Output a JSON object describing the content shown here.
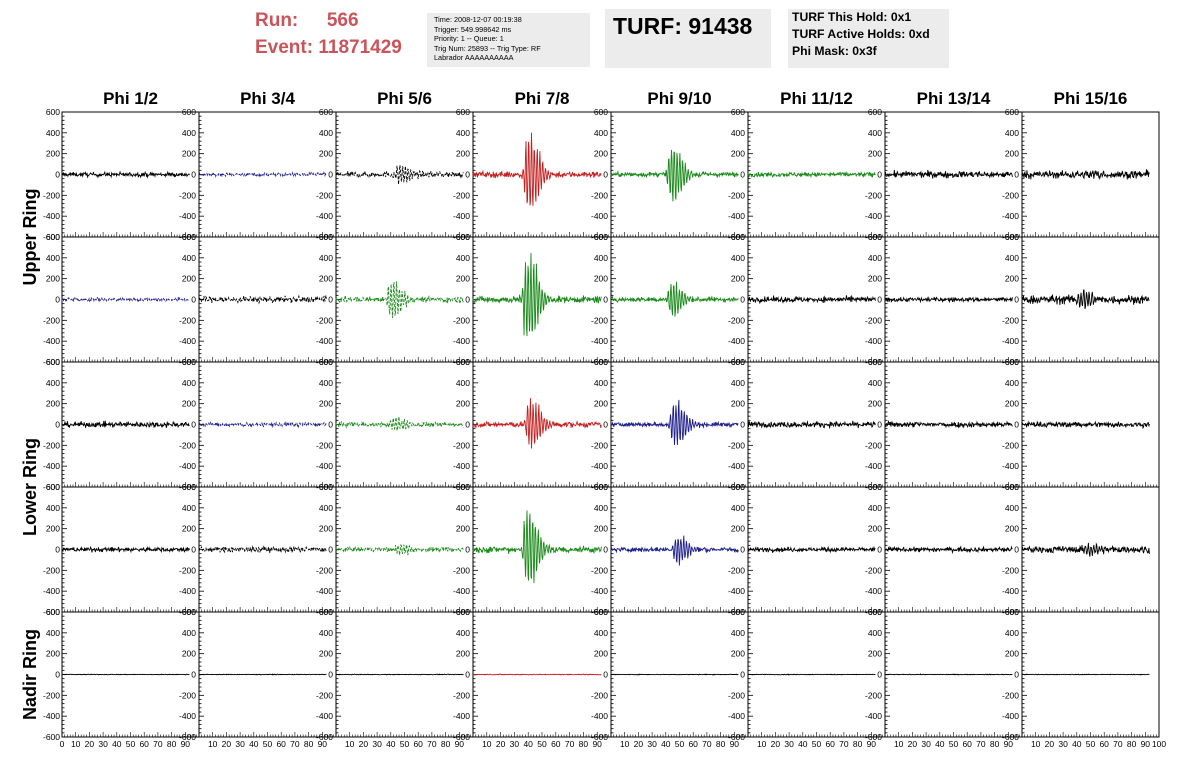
{
  "header": {
    "run_label": "Run:",
    "run_value": "566",
    "event_label": "Event:",
    "event_value": "11871429",
    "info_lines": [
      "Time: 2008-12-07 00:19:38",
      "Trigger: 549.998642 ms",
      "Priority: 1 -- Queue: 1",
      "Trig Num: 25893 -- Trig Type: RF",
      "Labrador AAAAAAAAAA"
    ],
    "turf_label": "TURF: 91438",
    "turf_lines": [
      "TURF This Hold: 0x1",
      "TURF Active Holds: 0xd",
      "Phi Mask: 0x3f"
    ]
  },
  "colors": {
    "black": "#000000",
    "blue": "#1d1d8c",
    "green": "#1a8a1a",
    "red": "#c42020",
    "header_red": "#c9545a",
    "box_gray": "#ececec"
  },
  "chart_data": {
    "type": "line",
    "column_titles": [
      "Phi 1/2",
      "Phi 3/4",
      "Phi 5/6",
      "Phi 7/8",
      "Phi 9/10",
      "Phi 11/12",
      "Phi 13/14",
      "Phi 15/16"
    ],
    "ring_labels": [
      "Upper Ring",
      "Lower Ring",
      "Nadir Ring"
    ],
    "xlim": [
      0,
      100
    ],
    "ylim": [
      -600,
      600
    ],
    "y_ticks": [
      600,
      400,
      200,
      0,
      -200,
      -400,
      -600
    ],
    "x_tick_labels": [
      "0",
      "10",
      "20",
      "30",
      "40",
      "50",
      "60",
      "70",
      "80",
      "90",
      "100"
    ],
    "rows": [
      {
        "ring": "Upper Ring",
        "channels": [
          {
            "color": "black",
            "baseline": 0,
            "noise": 20,
            "pulse_amp": 0,
            "pulse_center": 45,
            "style": "solid"
          },
          {
            "color": "blue",
            "baseline": 0,
            "noise": 15,
            "pulse_amp": 0,
            "pulse_center": 45,
            "style": "dashed"
          },
          {
            "color": "black",
            "baseline": 0,
            "noise": 25,
            "pulse_amp": 110,
            "pulse_center": 48,
            "style": "dashed"
          },
          {
            "color": "red",
            "baseline": 0,
            "noise": 28,
            "pulse_amp": 420,
            "pulse_center": 42,
            "style": "solid"
          },
          {
            "color": "green",
            "baseline": 0,
            "noise": 22,
            "pulse_amp": 300,
            "pulse_center": 46,
            "style": "solid"
          },
          {
            "color": "green",
            "baseline": 0,
            "noise": 20,
            "pulse_amp": 0,
            "pulse_center": 45,
            "style": "solid"
          },
          {
            "color": "black",
            "baseline": 0,
            "noise": 30,
            "pulse_amp": 0,
            "pulse_center": 45,
            "style": "solid"
          },
          {
            "color": "black",
            "baseline": 0,
            "noise": 35,
            "pulse_amp": 40,
            "pulse_center": 55,
            "style": "solid"
          }
        ]
      },
      {
        "ring": "Upper Ring",
        "channels": [
          {
            "color": "blue",
            "baseline": 0,
            "noise": 15,
            "pulse_amp": 0,
            "pulse_center": 45,
            "style": "dashed"
          },
          {
            "color": "black",
            "baseline": 0,
            "noise": 28,
            "pulse_amp": 0,
            "pulse_center": 45,
            "style": "dashed"
          },
          {
            "color": "green",
            "baseline": 0,
            "noise": 25,
            "pulse_amp": 190,
            "pulse_center": 42,
            "style": "dashed"
          },
          {
            "color": "green",
            "baseline": 0,
            "noise": 30,
            "pulse_amp": 500,
            "pulse_center": 41,
            "style": "solid"
          },
          {
            "color": "green",
            "baseline": 0,
            "noise": 22,
            "pulse_amp": 180,
            "pulse_center": 46,
            "style": "solid"
          },
          {
            "color": "black",
            "baseline": 0,
            "noise": 25,
            "pulse_amp": 0,
            "pulse_center": 45,
            "style": "solid"
          },
          {
            "color": "black",
            "baseline": 0,
            "noise": 20,
            "pulse_amp": 0,
            "pulse_center": 45,
            "style": "solid"
          },
          {
            "color": "black",
            "baseline": 0,
            "noise": 40,
            "pulse_amp": 100,
            "pulse_center": 45,
            "style": "solid"
          }
        ]
      },
      {
        "ring": "Lower Ring",
        "channels": [
          {
            "color": "black",
            "baseline": 0,
            "noise": 25,
            "pulse_amp": 0,
            "pulse_center": 45,
            "style": "solid"
          },
          {
            "color": "blue",
            "baseline": 0,
            "noise": 18,
            "pulse_amp": 0,
            "pulse_center": 45,
            "style": "dashed"
          },
          {
            "color": "green",
            "baseline": 0,
            "noise": 22,
            "pulse_amp": 80,
            "pulse_center": 45,
            "style": "dashed"
          },
          {
            "color": "red",
            "baseline": 0,
            "noise": 25,
            "pulse_amp": 280,
            "pulse_center": 43,
            "style": "solid"
          },
          {
            "color": "blue",
            "baseline": 0,
            "noise": 20,
            "pulse_amp": 250,
            "pulse_center": 48,
            "style": "solid"
          },
          {
            "color": "black",
            "baseline": 0,
            "noise": 25,
            "pulse_amp": 0,
            "pulse_center": 45,
            "style": "solid"
          },
          {
            "color": "black",
            "baseline": 0,
            "noise": 25,
            "pulse_amp": 0,
            "pulse_center": 45,
            "style": "solid"
          },
          {
            "color": "black",
            "baseline": 0,
            "noise": 25,
            "pulse_amp": 0,
            "pulse_center": 45,
            "style": "solid"
          }
        ]
      },
      {
        "ring": "Lower Ring",
        "channels": [
          {
            "color": "black",
            "baseline": 0,
            "noise": 20,
            "pulse_amp": 0,
            "pulse_center": 45,
            "style": "solid"
          },
          {
            "color": "black",
            "baseline": 0,
            "noise": 25,
            "pulse_amp": 0,
            "pulse_center": 45,
            "style": "dashed"
          },
          {
            "color": "green",
            "baseline": 0,
            "noise": 20,
            "pulse_amp": 60,
            "pulse_center": 48,
            "style": "dashed"
          },
          {
            "color": "green",
            "baseline": 0,
            "noise": 30,
            "pulse_amp": 430,
            "pulse_center": 41,
            "style": "solid"
          },
          {
            "color": "blue",
            "baseline": 0,
            "noise": 20,
            "pulse_amp": 160,
            "pulse_center": 50,
            "style": "solid"
          },
          {
            "color": "black",
            "baseline": 0,
            "noise": 20,
            "pulse_amp": 0,
            "pulse_center": 45,
            "style": "solid"
          },
          {
            "color": "black",
            "baseline": 0,
            "noise": 20,
            "pulse_amp": 0,
            "pulse_center": 45,
            "style": "solid"
          },
          {
            "color": "black",
            "baseline": 0,
            "noise": 30,
            "pulse_amp": 60,
            "pulse_center": 50,
            "style": "solid"
          }
        ]
      },
      {
        "ring": "Nadir Ring",
        "channels": [
          {
            "color": "black",
            "baseline": 0,
            "noise": 3,
            "pulse_amp": 0,
            "pulse_center": 45,
            "style": "solid"
          },
          {
            "color": "black",
            "baseline": 0,
            "noise": 3,
            "pulse_amp": 0,
            "pulse_center": 45,
            "style": "solid"
          },
          {
            "color": "black",
            "baseline": 0,
            "noise": 3,
            "pulse_amp": 0,
            "pulse_center": 45,
            "style": "solid"
          },
          {
            "color": "red",
            "baseline": 0,
            "noise": 4,
            "pulse_amp": 0,
            "pulse_center": 45,
            "style": "solid"
          },
          {
            "color": "black",
            "baseline": 0,
            "noise": 3,
            "pulse_amp": 0,
            "pulse_center": 45,
            "style": "solid"
          },
          {
            "color": "black",
            "baseline": 0,
            "noise": 3,
            "pulse_amp": 0,
            "pulse_center": 45,
            "style": "solid"
          },
          {
            "color": "black",
            "baseline": 0,
            "noise": 3,
            "pulse_amp": 0,
            "pulse_center": 45,
            "style": "solid"
          },
          {
            "color": "black",
            "baseline": 0,
            "noise": 3,
            "pulse_amp": 0,
            "pulse_center": 45,
            "style": "solid"
          }
        ]
      }
    ]
  }
}
